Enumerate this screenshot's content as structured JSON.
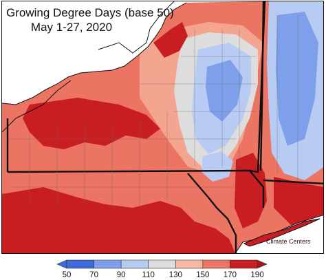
{
  "title": {
    "line1": "Growing Degree Days (base 50)",
    "line2": "May 1-27, 2020"
  },
  "watermark": "Climate Centers",
  "colorbar": {
    "ticks": [
      "50",
      "70",
      "90",
      "110",
      "130",
      "150",
      "170",
      "190"
    ],
    "colors": [
      "#3d6ad8",
      "#7ea0ea",
      "#b7cbf3",
      "#dddddd",
      "#f6b7a3",
      "#ec7462",
      "#c81e22"
    ],
    "arrow_low_color": "#3d6ad8",
    "arrow_high_color": "#b0121c"
  },
  "colors": {
    "background": "#ffffff",
    "lake": "#ffffff",
    "border": "#111111"
  }
}
